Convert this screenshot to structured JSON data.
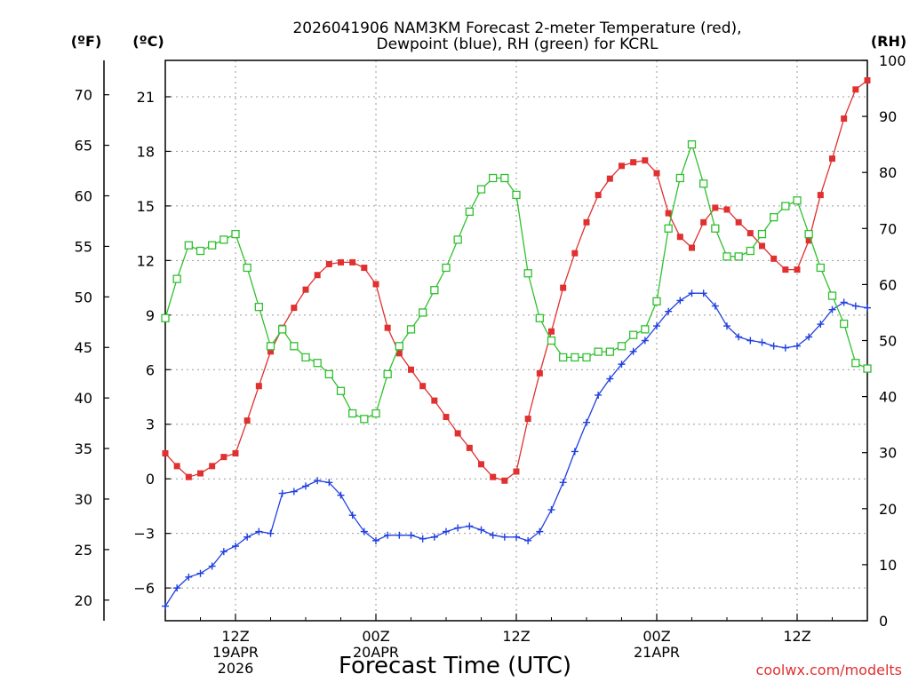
{
  "chart_data": {
    "type": "line",
    "title_line1": "2026041906 NAM3KM Forecast 2-meter Temperature (red),",
    "title_line2": "Dewpoint (blue), RH (green) for KCRL",
    "xlabel": "Forecast Time (UTC)",
    "credit": "coolwx.com/modelts",
    "unit_f": "(ºF)",
    "unit_c": "(ºC)",
    "unit_rh": "(RH)",
    "x_unit": "forecast hour from 2026041906",
    "xlim": [
      0,
      60
    ],
    "celsius_lim": [
      -7.8,
      23.0
    ],
    "rh_lim": [
      0,
      100
    ],
    "fahrenheit_ticks": [
      "20",
      "25",
      "30",
      "35",
      "40",
      "45",
      "50",
      "55",
      "60",
      "65",
      "70"
    ],
    "celsius_ticks": [
      "-6",
      "-3",
      "0",
      "3",
      "6",
      "9",
      "12",
      "15",
      "18",
      "21"
    ],
    "rh_ticks": [
      "0",
      "10",
      "20",
      "30",
      "40",
      "50",
      "60",
      "70",
      "80",
      "90",
      "100"
    ],
    "x_ticks": [
      {
        "hour": 6,
        "lines": [
          "12Z",
          "19APR",
          "2026"
        ]
      },
      {
        "hour": 18,
        "lines": [
          "00Z",
          "20APR"
        ]
      },
      {
        "hour": 30,
        "lines": [
          "12Z"
        ]
      },
      {
        "hour": 42,
        "lines": [
          "00Z",
          "21APR"
        ]
      },
      {
        "hour": 54,
        "lines": [
          "12Z"
        ]
      }
    ],
    "series": [
      {
        "name": "2-meter Temperature",
        "unit": "C",
        "color": "#e03030",
        "marker": "filled-square",
        "x": [
          0,
          1,
          2,
          3,
          4,
          5,
          6,
          7,
          8,
          9,
          10,
          11,
          12,
          13,
          14,
          15,
          16,
          17,
          18,
          19,
          20,
          21,
          22,
          23,
          24,
          25,
          26,
          27,
          28,
          29,
          30,
          31,
          32,
          33,
          34,
          35,
          36,
          37,
          38,
          39,
          40,
          41,
          42,
          43,
          44,
          45,
          46,
          47,
          48,
          49,
          50,
          51,
          52,
          53,
          54,
          55,
          56,
          57,
          58,
          59,
          60
        ],
        "values": [
          1.4,
          0.7,
          0.1,
          0.3,
          0.7,
          1.2,
          1.4,
          3.2,
          5.1,
          7.0,
          8.3,
          9.4,
          10.4,
          11.2,
          11.8,
          11.9,
          11.9,
          11.6,
          10.7,
          8.3,
          6.9,
          6.0,
          5.1,
          4.3,
          3.4,
          2.5,
          1.7,
          0.8,
          0.1,
          -0.1,
          0.4,
          3.3,
          5.8,
          8.1,
          10.5,
          12.4,
          14.1,
          15.6,
          16.5,
          17.2,
          17.4,
          17.5,
          16.8,
          14.6,
          13.3,
          12.7,
          14.1,
          14.9,
          14.8,
          14.1,
          13.5,
          12.8,
          12.1,
          11.5,
          11.5,
          13.1,
          15.6,
          17.6,
          19.8,
          21.4,
          21.9
        ]
      },
      {
        "name": "Dewpoint",
        "unit": "C",
        "color": "#2040e0",
        "marker": "plus",
        "x": [
          0,
          1,
          2,
          3,
          4,
          5,
          6,
          7,
          8,
          9,
          10,
          11,
          12,
          13,
          14,
          15,
          16,
          17,
          18,
          19,
          20,
          21,
          22,
          23,
          24,
          25,
          26,
          27,
          28,
          29,
          30,
          31,
          32,
          33,
          34,
          35,
          36,
          37,
          38,
          39,
          40,
          41,
          42,
          43,
          44,
          45,
          46,
          47,
          48,
          49,
          50,
          51,
          52,
          53,
          54,
          55,
          56,
          57,
          58,
          59,
          60
        ],
        "values": [
          -7.0,
          -6.0,
          -5.4,
          -5.2,
          -4.8,
          -4.0,
          -3.7,
          -3.2,
          -2.9,
          -3.0,
          -0.8,
          -0.7,
          -0.4,
          -0.1,
          -0.2,
          -0.9,
          -2.0,
          -2.9,
          -3.4,
          -3.1,
          -3.1,
          -3.1,
          -3.3,
          -3.2,
          -2.9,
          -2.7,
          -2.6,
          -2.8,
          -3.1,
          -3.2,
          -3.2,
          -3.4,
          -2.9,
          -1.7,
          -0.2,
          1.5,
          3.1,
          4.6,
          5.5,
          6.3,
          7.0,
          7.6,
          8.4,
          9.2,
          9.8,
          10.2,
          10.2,
          9.5,
          8.4,
          7.8,
          7.6,
          7.5,
          7.3,
          7.2,
          7.3,
          7.8,
          8.5,
          9.3,
          9.7,
          9.5,
          9.4
        ]
      },
      {
        "name": "RH",
        "unit": "%",
        "color": "#30c030",
        "marker": "open-square",
        "x": [
          0,
          1,
          2,
          3,
          4,
          5,
          6,
          7,
          8,
          9,
          10,
          11,
          12,
          13,
          14,
          15,
          16,
          17,
          18,
          19,
          20,
          21,
          22,
          23,
          24,
          25,
          26,
          27,
          28,
          29,
          30,
          31,
          32,
          33,
          34,
          35,
          36,
          37,
          38,
          39,
          40,
          41,
          42,
          43,
          44,
          45,
          46,
          47,
          48,
          49,
          50,
          51,
          52,
          53,
          54,
          55,
          56,
          57,
          58,
          59,
          60
        ],
        "values": [
          54,
          61,
          67,
          66,
          67,
          68,
          69,
          63,
          56,
          49,
          52,
          49,
          47,
          46,
          44,
          41,
          37,
          36,
          37,
          44,
          49,
          52,
          55,
          59,
          63,
          68,
          73,
          77,
          79,
          79,
          76,
          62,
          54,
          50,
          47,
          47,
          47,
          48,
          48,
          49,
          51,
          52,
          57,
          70,
          79,
          85,
          78,
          70,
          65,
          65,
          66,
          69,
          72,
          74,
          75,
          69,
          63,
          58,
          53,
          46,
          45
        ]
      }
    ]
  }
}
